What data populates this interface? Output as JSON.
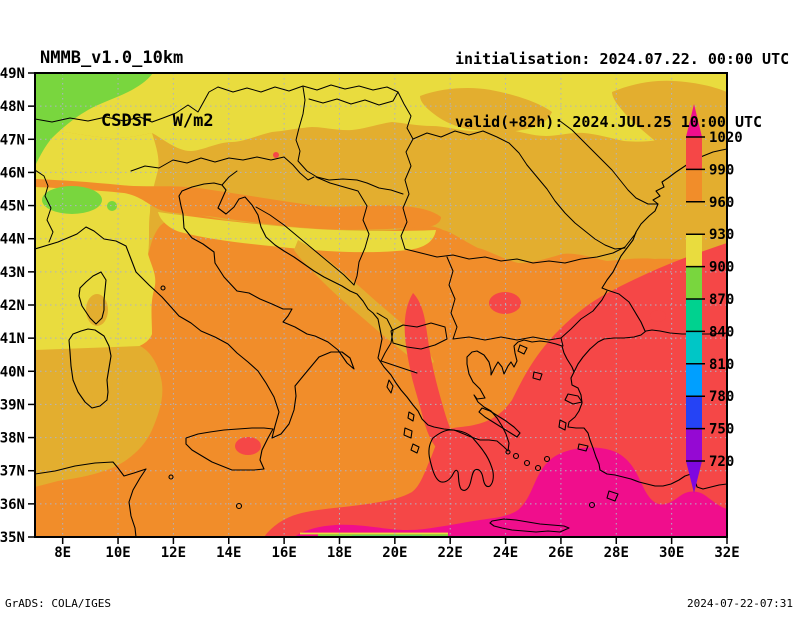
{
  "header": {
    "model": "NMMB_v1.0_10km",
    "variable": "CSDSF  W/m2",
    "init_line": "initialisation: 2024.07.22. 00:00 UTC",
    "valid_line": "valid(+82h): 2024.JUL.25 10:00 UTC"
  },
  "footer": {
    "left": "GrADS: COLA/IGES",
    "right": "2024-07-22-07:31"
  },
  "chart_data": {
    "type": "heatmap",
    "title": "NMMB_v1.0_10km",
    "subtitle": "CSDSF W/m2",
    "variable": "CSDSF",
    "units": "W/m2",
    "initialisation": "2024.07.22. 00:00 UTC",
    "valid": "valid(+82h): 2024.JUL.25 10:00 UTC",
    "projection": "latlon",
    "lon_min_e": 7,
    "lon_max_e": 32,
    "lat_min_n": 35,
    "lat_max_n": 49,
    "x_tick_labels": [
      "8E",
      "10E",
      "12E",
      "14E",
      "16E",
      "18E",
      "20E",
      "22E",
      "24E",
      "26E",
      "28E",
      "30E",
      "32E"
    ],
    "y_tick_labels": [
      "35N",
      "36N",
      "37N",
      "38N",
      "39N",
      "40N",
      "41N",
      "42N",
      "43N",
      "44N",
      "45N",
      "46N",
      "47N",
      "48N",
      "49N"
    ],
    "grid": true,
    "legend_position": "right-inside",
    "colorbar": {
      "orientation": "vertical",
      "arrow_low": true,
      "arrow_high": true,
      "levels": [
        720,
        750,
        780,
        810,
        840,
        870,
        900,
        930,
        960,
        990,
        1020
      ],
      "colors_low_to_high": [
        "#7e07e0",
        "#9509d3",
        "#2543f5",
        "#009fff",
        "#00c6c6",
        "#00d28f",
        "#79d63e",
        "#e9dc3e",
        "#e3ae2f",
        "#f18d2a",
        "#f54747",
        "#f00e8c"
      ]
    },
    "field_summary": [
      {
        "region": "far northwest (Alps foreland, 8-10E 47-49N)",
        "approx_value_w_m2": "870-900"
      },
      {
        "region": "north band (46-49N)",
        "approx_value_w_m2": "900-930"
      },
      {
        "region": "Alps / NE Italy / NW Balkans band",
        "approx_value_w_m2": "930-960"
      },
      {
        "region": "central Mediterranean and Balkans",
        "approx_value_w_m2": "960-990"
      },
      {
        "region": "southeast (Aegean, W Turkey, Albania tongue, Sicily spot)",
        "approx_value_w_m2": "990-1020"
      },
      {
        "region": "far south strip and S Aegean / Crete (35-36.5N)",
        "approx_value_w_m2": ">1020"
      }
    ],
    "grid_color": "#adb2c6",
    "frame_color": "#000000"
  }
}
